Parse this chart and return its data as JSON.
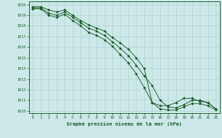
{
  "xlabel": "Graphe pression niveau de la mer (hPa)",
  "xlim": [
    -0.5,
    23.5
  ],
  "ylim": [
    1009.8,
    1020.3
  ],
  "yticks": [
    1010,
    1011,
    1012,
    1013,
    1014,
    1015,
    1016,
    1017,
    1018,
    1019,
    1020
  ],
  "xticks": [
    0,
    1,
    2,
    3,
    4,
    5,
    6,
    7,
    8,
    9,
    10,
    11,
    12,
    13,
    14,
    15,
    16,
    17,
    18,
    19,
    20,
    21,
    22,
    23
  ],
  "background_color": "#cce8e8",
  "grid_color": "#b0d0d0",
  "line_color": "#1a5c2a",
  "line1_y": [
    1019.8,
    1019.8,
    1019.5,
    1019.3,
    1019.5,
    1019.0,
    1018.5,
    1018.1,
    1017.8,
    1017.5,
    1016.9,
    1016.4,
    1015.8,
    1015.0,
    1014.0,
    1010.8,
    1010.5,
    1010.5,
    1010.8,
    1011.2,
    1011.2,
    1010.9,
    1010.8,
    1010.2
  ],
  "line2_y": [
    1019.7,
    1019.7,
    1019.2,
    1019.0,
    1019.3,
    1018.8,
    1018.3,
    1017.8,
    1017.5,
    1017.1,
    1016.5,
    1015.9,
    1015.2,
    1014.3,
    1013.3,
    1012.4,
    1011.0,
    1010.4,
    1010.3,
    1010.6,
    1011.0,
    1011.0,
    1010.8,
    1010.2
  ],
  "line3_y": [
    1019.6,
    1019.6,
    1019.0,
    1018.8,
    1019.1,
    1018.5,
    1018.0,
    1017.4,
    1017.1,
    1016.7,
    1016.1,
    1015.3,
    1014.5,
    1013.5,
    1012.2,
    1010.8,
    1010.2,
    1010.1,
    1010.1,
    1010.4,
    1010.7,
    1010.7,
    1010.5,
    1010.1
  ]
}
